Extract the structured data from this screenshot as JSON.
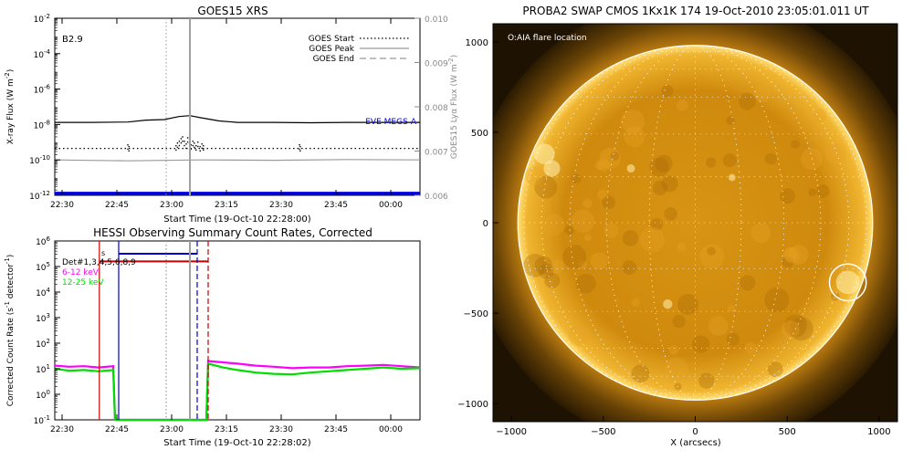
{
  "chart_data": [
    {
      "type": "line",
      "title": "GOES15 XRS",
      "xlabel": "Start Time (19-Oct-10 22:28:00)",
      "ylabel": "X-ray Flux (W m",
      "ylabel_sup": "-2",
      "ylabel_tail": ")",
      "ylabel_right": "GOES15 Lyα Flux (W m",
      "ylabel_right_sup": "-2",
      "ylabel_right_tail": ")",
      "class_label": "B2.9",
      "y_scale": "log",
      "ylim_exp": [
        -12,
        -2
      ],
      "y_ticks": [
        {
          "exp": -2,
          "label": "10",
          "sup": "-2"
        },
        {
          "exp": -4,
          "label": "10",
          "sup": "-4"
        },
        {
          "exp": -6,
          "label": "10",
          "sup": "-6"
        },
        {
          "exp": -8,
          "label": "10",
          "sup": "-8"
        },
        {
          "exp": -10,
          "label": "10",
          "sup": "-10"
        },
        {
          "exp": -12,
          "label": "10",
          "sup": "-12"
        }
      ],
      "y_right_ticks": [
        {
          "value": 0.01,
          "label": "0.010"
        },
        {
          "value": 0.009,
          "label": "0.009"
        },
        {
          "value": 0.008,
          "label": "0.008"
        },
        {
          "value": 0.007,
          "label": "0.007"
        },
        {
          "value": 0.006,
          "label": "0.006"
        }
      ],
      "y_right_lim": [
        0.006,
        0.01
      ],
      "xlim_min": [
        0,
        100
      ],
      "x_ticks": [
        {
          "min": 2,
          "label": "22:30"
        },
        {
          "min": 17,
          "label": "22:45"
        },
        {
          "min": 32,
          "label": "23:00"
        },
        {
          "min": 47,
          "label": "23:15"
        },
        {
          "min": 62,
          "label": "23:30"
        },
        {
          "min": 77,
          "label": "23:45"
        },
        {
          "min": 92,
          "label": "00:00"
        }
      ],
      "legend": [
        {
          "label": "GOES Start",
          "style": "dotted"
        },
        {
          "label": "GOES Peak",
          "style": "solid"
        },
        {
          "label": "GOES End",
          "style": "dashed"
        }
      ],
      "eve_label": "EVE MEGS-A",
      "vlines": [
        {
          "min": 30.5,
          "style": "dotted",
          "color": "#999999"
        },
        {
          "min": 37,
          "style": "solid",
          "color": "#a0a0a0"
        }
      ],
      "series": [
        {
          "color": "#000000",
          "style": "solid",
          "x": [
            0,
            10,
            20,
            25,
            30,
            34,
            37,
            40,
            45,
            50,
            60,
            70,
            80,
            90,
            100
          ],
          "y_exp": [
            -7.88,
            -7.88,
            -7.86,
            -7.75,
            -7.72,
            -7.55,
            -7.5,
            -7.62,
            -7.8,
            -7.88,
            -7.88,
            -7.9,
            -7.88,
            -7.88,
            -7.88
          ]
        },
        {
          "color": "#000000",
          "style": "dotted",
          "x": [
            0,
            100
          ],
          "y_exp": [
            -9.35,
            -9.35
          ]
        },
        {
          "color": "#9a9a9a",
          "style": "solid",
          "x": [
            0,
            20,
            40,
            60,
            80,
            100
          ],
          "y_exp": [
            -10.0,
            -10.05,
            -10.0,
            -10.02,
            -9.98,
            -10.0
          ]
        },
        {
          "color": "#0000dd",
          "style": "thick",
          "x": [
            0,
            100
          ],
          "y_exp": [
            -11.9,
            -11.9
          ]
        }
      ],
      "scatter": {
        "color": "#000000",
        "x": [
          20,
          20.3,
          33.2,
          33.6,
          34.1,
          34.6,
          35.0,
          35.5,
          36.0,
          36.4,
          36.9,
          37.3,
          37.8,
          38.2,
          38.7,
          39.2,
          39.8,
          40.3,
          40.7,
          67.0,
          67.2
        ],
        "y_exp": [
          -9.15,
          -9.25,
          -9.2,
          -9.05,
          -8.95,
          -8.8,
          -8.7,
          -8.95,
          -9.1,
          -8.75,
          -8.85,
          -9.15,
          -8.95,
          -9.05,
          -9.2,
          -9.0,
          -9.25,
          -9.1,
          -9.2,
          -9.15,
          -9.25
        ]
      }
    },
    {
      "type": "line",
      "title": "HESSI Observing Summary Count Rates, Corrected",
      "xlabel": "Start Time (19-Oct-10 22:28:02)",
      "ylabel": "Corrected Count Rate (s",
      "ylabel_sup": "-1",
      "ylabel_tail": " detector",
      "ylabel_sup2": "-1",
      "ylabel_tail2": ")",
      "y_scale": "log",
      "ylim_exp": [
        -1,
        6
      ],
      "y_ticks": [
        {
          "exp": 6,
          "label": "10",
          "sup": "6"
        },
        {
          "exp": 5,
          "label": "10",
          "sup": "5"
        },
        {
          "exp": 4,
          "label": "10",
          "sup": "4"
        },
        {
          "exp": 3,
          "label": "10",
          "sup": "3"
        },
        {
          "exp": 2,
          "label": "10",
          "sup": "2"
        },
        {
          "exp": 1,
          "label": "10",
          "sup": "1"
        },
        {
          "exp": 0,
          "label": "10",
          "sup": "0"
        },
        {
          "exp": -1,
          "label": "10",
          "sup": "-1"
        }
      ],
      "xlim_min": [
        0,
        100
      ],
      "x_ticks": [
        {
          "min": 2,
          "label": "22:30"
        },
        {
          "min": 17,
          "label": "22:45"
        },
        {
          "min": 32,
          "label": "23:00"
        },
        {
          "min": 47,
          "label": "23:15"
        },
        {
          "min": 62,
          "label": "23:30"
        },
        {
          "min": 77,
          "label": "23:45"
        },
        {
          "min": 92,
          "label": "00:00"
        }
      ],
      "legend": [
        {
          "label": "Det#1,3,4,5,6,8,9",
          "color": "#000000"
        },
        {
          "label": "6-12 keV",
          "color": "#ff00ff"
        },
        {
          "label": "12-25 keV",
          "color": "#00dd00"
        }
      ],
      "s_label": "s",
      "vlines": [
        {
          "min": 12.2,
          "style": "solid",
          "color": "#cc0000"
        },
        {
          "min": 17.5,
          "style": "solid",
          "color": "#0000cc"
        },
        {
          "min": 30.5,
          "style": "dotted",
          "color": "#999999"
        },
        {
          "min": 37,
          "style": "solid",
          "color": "#a0a0a0"
        },
        {
          "min": 39,
          "style": "dashed",
          "color": "#0000cc"
        },
        {
          "min": 42,
          "style": "dashed",
          "color": "#cc0000"
        }
      ],
      "bars": [
        {
          "color": "#cc0000",
          "x0": 12.2,
          "x1": 42,
          "y_exp": 5.2
        },
        {
          "color": "#0000cc",
          "x0": 17.5,
          "x1": 39,
          "y_exp": 5.5
        }
      ],
      "series": [
        {
          "color": "#ff00ff",
          "x": [
            0,
            4,
            8,
            12,
            16,
            16.5,
            41.5,
            42,
            46,
            50,
            55,
            60,
            65,
            70,
            75,
            80,
            85,
            90,
            95,
            100
          ],
          "y_exp": [
            1.12,
            1.08,
            1.1,
            1.05,
            1.1,
            -1,
            -1,
            1.3,
            1.25,
            1.2,
            1.12,
            1.08,
            1.02,
            1.05,
            1.05,
            1.1,
            1.12,
            1.15,
            1.1,
            1.05
          ]
        },
        {
          "color": "#00dd00",
          "x": [
            0,
            4,
            8,
            12,
            16,
            16.5,
            41.5,
            42,
            46,
            50,
            55,
            60,
            65,
            70,
            75,
            80,
            85,
            90,
            95,
            100
          ],
          "y_exp": [
            1.0,
            0.92,
            0.95,
            0.9,
            0.95,
            -1,
            -1,
            1.2,
            1.05,
            0.95,
            0.85,
            0.8,
            0.78,
            0.85,
            0.9,
            0.95,
            1.0,
            1.05,
            1.0,
            1.02
          ]
        }
      ]
    },
    {
      "type": "image",
      "title": "PROBA2 SWAP CMOS 1Kx1K 174 19-Oct-2010 23:05:01.011 UT",
      "xlabel": "X (arcsecs)",
      "annotation": "O:AIA flare location",
      "xlim": [
        -1100,
        1100
      ],
      "ylim": [
        -1100,
        1100
      ],
      "x_ticks": [
        {
          "value": -1000,
          "label": "−1000"
        },
        {
          "value": -500,
          "label": "−500"
        },
        {
          "value": 0,
          "label": "0"
        },
        {
          "value": 500,
          "label": "500"
        },
        {
          "value": 1000,
          "label": "1000"
        }
      ],
      "y_ticks": [
        {
          "value": 1000,
          "label": "1000"
        },
        {
          "value": 500,
          "label": "500"
        },
        {
          "value": 0,
          "label": "0"
        },
        {
          "value": -500,
          "label": "−500"
        },
        {
          "value": -1000,
          "label": "−1000"
        }
      ],
      "disk_radius": 965,
      "flare_location": {
        "x": 830,
        "y": -330,
        "r": 100
      },
      "colors": {
        "disk": "#d08a10",
        "corona": "#5a3a05",
        "limb": "#ffd64a"
      }
    }
  ]
}
